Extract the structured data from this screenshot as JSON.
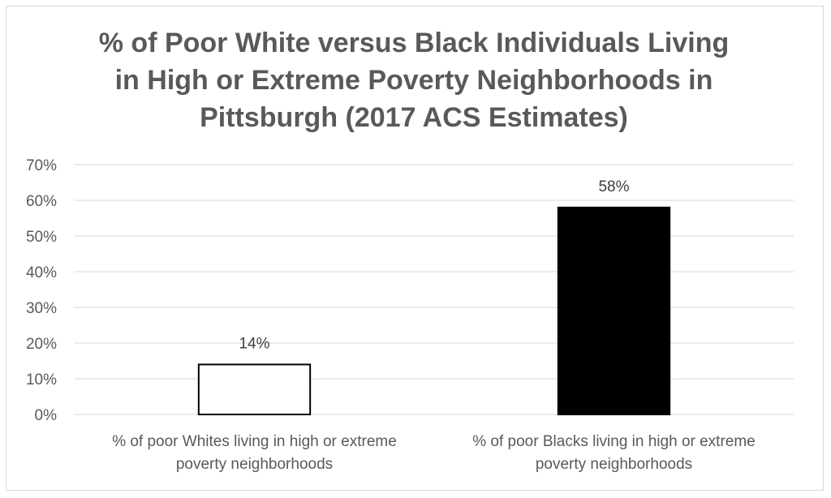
{
  "chart_data": {
    "type": "bar",
    "title": "% of Poor White versus Black Individuals Living in High or Extreme Poverty Neighborhoods in Pittsburgh (2017 ACS Estimates)",
    "title_lines": [
      "% of Poor White versus Black Individuals Living",
      "in High or Extreme Poverty Neighborhoods in",
      "Pittsburgh (2017 ACS Estimates)"
    ],
    "categories": [
      "% of poor Whites living in high or extreme poverty neighborhoods",
      "% of poor Blacks living in high or extreme poverty neighborhoods"
    ],
    "category_label_lines": [
      [
        "% of poor Whites living in high or extreme",
        "poverty neighborhoods"
      ],
      [
        "% of poor Blacks living in high or extreme",
        "poverty neighborhoods"
      ]
    ],
    "values": [
      14,
      58
    ],
    "data_labels": [
      "14%",
      "58%"
    ],
    "bar_fills": [
      "#ffffff",
      "#000000"
    ],
    "bar_strokes": [
      "#000000",
      "#000000"
    ],
    "ylim": [
      0,
      70
    ],
    "yticks": [
      0,
      10,
      20,
      30,
      40,
      50,
      60,
      70
    ],
    "ytick_labels": [
      "0%",
      "10%",
      "20%",
      "30%",
      "40%",
      "50%",
      "60%",
      "70%"
    ],
    "xlabel": "",
    "ylabel": "",
    "grid": true,
    "legend": "none",
    "colors": {
      "gridline": "#d9d9d9",
      "text": "#595959"
    }
  }
}
